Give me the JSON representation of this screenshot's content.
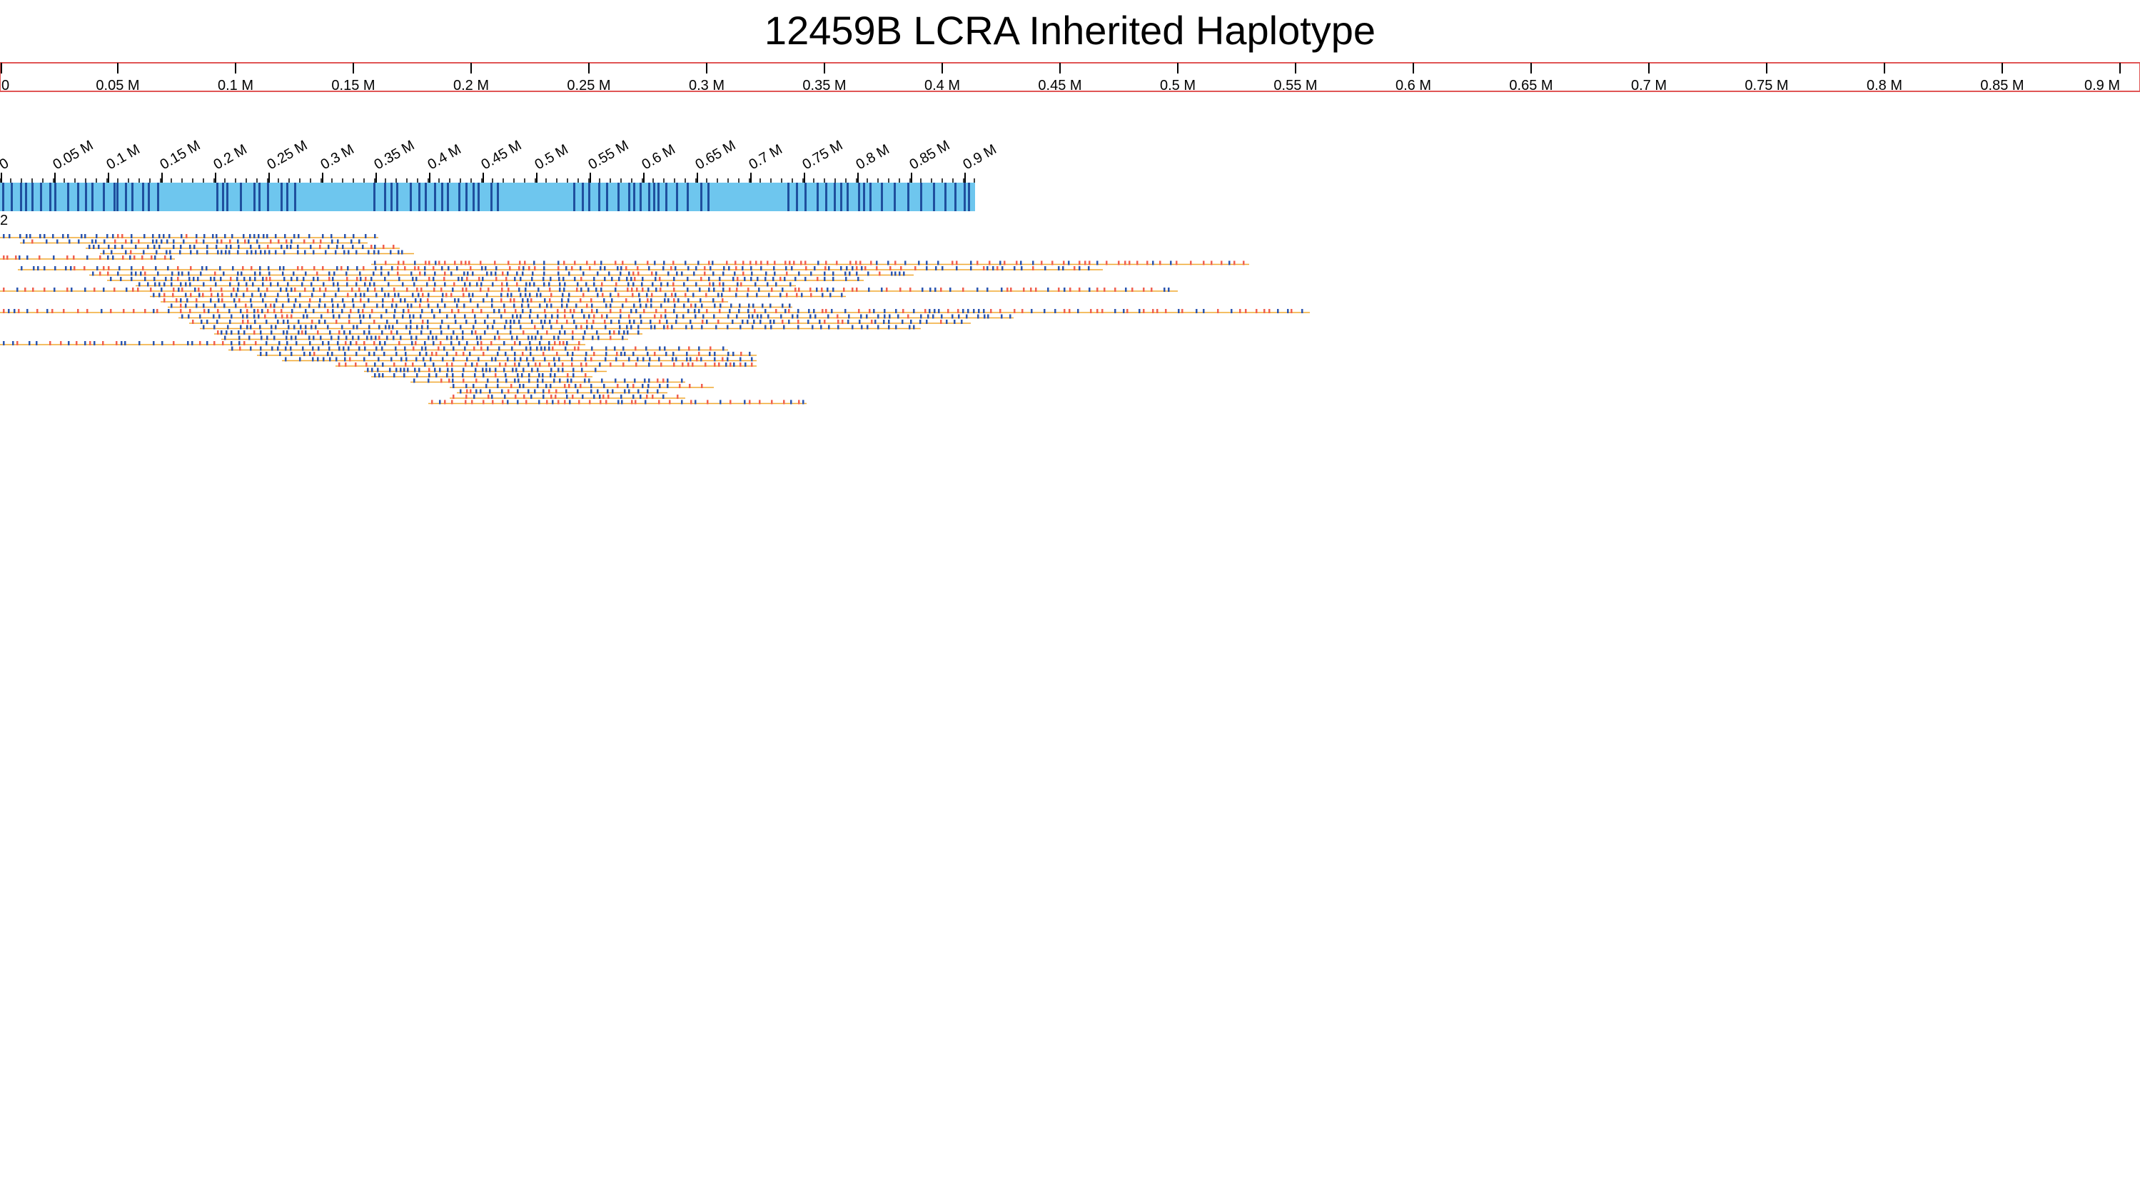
{
  "title": "12459B LCRA Inherited Haplotype",
  "top_axis": {
    "tick_labels": [
      "0",
      "0.05 M",
      "0.1 M",
      "0.15 M",
      "0.2 M",
      "0.25 M",
      "0.3 M",
      "0.35 M",
      "0.4 M",
      "0.45 M",
      "0.5 M",
      "0.55 M",
      "0.6 M",
      "0.65 M",
      "0.7 M",
      "0.75 M",
      "0.8 M",
      "0.85 M",
      "0.9 M"
    ],
    "range_mb": [
      0,
      0.9
    ],
    "border_color": "#e05555"
  },
  "contig": {
    "name": "2",
    "tick_labels": [
      "0",
      "0.05 M",
      "0.1 M",
      "0.15 M",
      "0.2 M",
      "0.25 M",
      "0.3 M",
      "0.35 M",
      "0.4 M",
      "0.45 M",
      "0.5 M",
      "0.55 M",
      "0.6 M",
      "0.65 M",
      "0.7 M",
      "0.75 M",
      "0.8 M",
      "0.85 M",
      "0.9 M"
    ],
    "range_mb": [
      0,
      0.9
    ],
    "fill_color": "#6ec6ee",
    "marker_color": "#1f4f9e"
  },
  "reads": {
    "line_color": "#f0a830",
    "match_color": "#2b55b0",
    "mismatch_color": "#f06050"
  }
}
